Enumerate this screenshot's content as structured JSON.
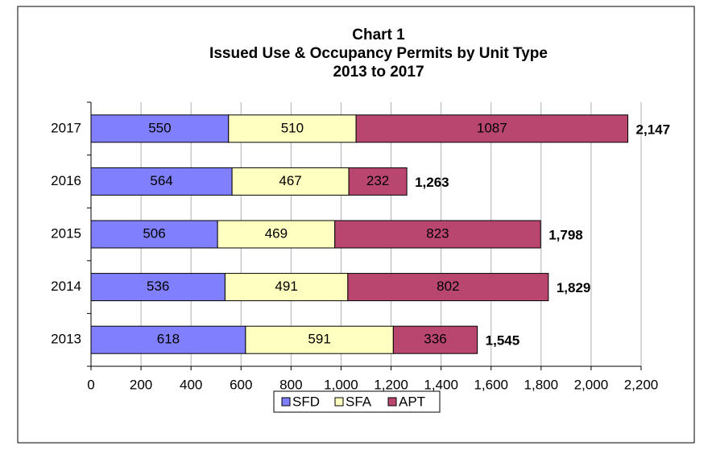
{
  "chart_data": {
    "type": "stacked-barh",
    "title": [
      "Chart 1",
      "Issued Use & Occupancy Permits by Unit Type",
      "2013 to 2017"
    ],
    "categories": [
      "2013",
      "2014",
      "2015",
      "2016",
      "2017"
    ],
    "series": [
      {
        "name": "SFD",
        "color": "#8080ff",
        "values": [
          618,
          536,
          506,
          564,
          550
        ]
      },
      {
        "name": "SFA",
        "color": "#ffffc0",
        "values": [
          591,
          491,
          469,
          467,
          510
        ]
      },
      {
        "name": "APT",
        "color": "#b9466f",
        "values": [
          336,
          802,
          823,
          232,
          1087
        ]
      }
    ],
    "totals": [
      1545,
      1829,
      1798,
      1263,
      2147
    ],
    "total_labels": [
      "1,545",
      "1,829",
      "1,798",
      "1,263",
      "2,147"
    ],
    "xlim": [
      0,
      2200
    ],
    "xticks": [
      0,
      200,
      400,
      600,
      800,
      {
        "value": 1000,
        "label": "1,000"
      },
      {
        "value": 1200,
        "label": "1,200"
      },
      {
        "value": 1400,
        "label": "1,400"
      },
      {
        "value": 1600,
        "label": "1,600"
      },
      {
        "value": 1800,
        "label": "1,800"
      },
      {
        "value": 2000,
        "label": "2,000"
      },
      {
        "value": 2200,
        "label": "2,200"
      }
    ],
    "grid": true,
    "legend": "bottom"
  }
}
